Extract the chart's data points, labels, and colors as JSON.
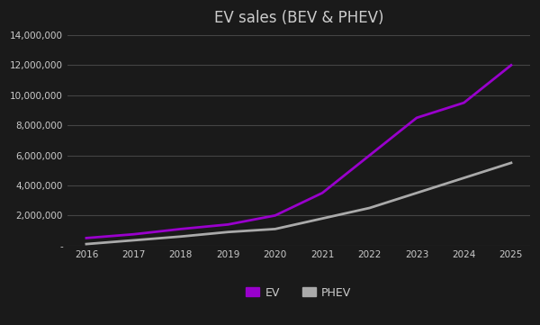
{
  "title": "EV sales (BEV & PHEV)",
  "years": [
    2016,
    2017,
    2018,
    2019,
    2020,
    2021,
    2022,
    2023,
    2024,
    2025
  ],
  "ev_values": [
    500000,
    750000,
    1100000,
    1400000,
    2000000,
    3500000,
    6000000,
    8500000,
    9500000,
    12000000
  ],
  "phev_values": [
    100000,
    350000,
    600000,
    900000,
    1100000,
    1800000,
    2500000,
    3500000,
    4500000,
    5500000
  ],
  "ev_color": "#9900CC",
  "phev_color": "#AAAAAA",
  "line_width": 2.0,
  "ylim": [
    0,
    14000000
  ],
  "yticks": [
    0,
    2000000,
    4000000,
    6000000,
    8000000,
    10000000,
    12000000,
    14000000
  ],
  "ytick_labels": [
    "-",
    "2,000,000",
    "4,000,000",
    "6,000,000",
    "8,000,000",
    "10,000,000",
    "12,000,000",
    "14,000,000"
  ],
  "background_color": "#1a1a1a",
  "plot_bg_color": "#1a1a1a",
  "grid_color": "#444444",
  "title_fontsize": 12,
  "tick_fontsize": 7.5,
  "tick_color": "#cccccc",
  "legend_labels": [
    "EV",
    "PHEV"
  ]
}
